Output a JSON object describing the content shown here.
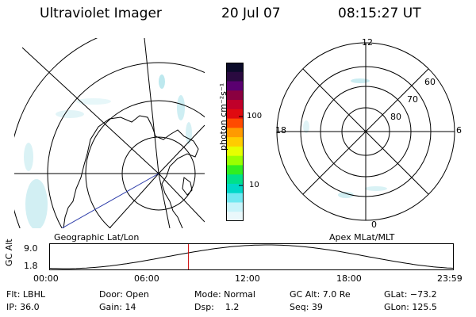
{
  "header": {
    "instrument": "Ultraviolet Imager",
    "date": "20 Jul 07",
    "time": "08:15:27 UT"
  },
  "left_panel": {
    "label": "Geographic Lat/Lon"
  },
  "right_panel": {
    "label": "Apex MLat/MLT",
    "mlt_labels": {
      "top": "12",
      "right": "6",
      "bottom": "0",
      "left": "18"
    },
    "lat_labels": [
      "60",
      "70",
      "80"
    ]
  },
  "colorbar": {
    "unit_label": "photon cm⁻²s⁻¹",
    "ticks": [
      "100",
      "10"
    ],
    "colors": [
      "#0b0b2a",
      "#2a0a40",
      "#5a0070",
      "#8a0040",
      "#c0002a",
      "#e00a10",
      "#ff4a00",
      "#ff9a00",
      "#ffcc00",
      "#e6ff00",
      "#9aff00",
      "#30ee20",
      "#00e08a",
      "#00d8c8",
      "#70e8f0",
      "#c8f4fa",
      "#eaf8fb"
    ]
  },
  "orbit": {
    "y_axis_label": "GC Alt",
    "y_ticks": [
      "9.0",
      "1.8"
    ],
    "x_ticks": [
      "00:00",
      "06:00",
      "12:00",
      "18:00",
      "23:59"
    ],
    "marker_time": "08:15:27",
    "line_color": "#000000",
    "marker_color": "#cc0000"
  },
  "footer": {
    "filter": "Flt: LBHL",
    "ip": "IP: 36.0",
    "door": "Door: Open",
    "gain": "Gain: 14",
    "mode": "Mode: Normal",
    "dsp": "Dsp:    1.2",
    "gc_alt": "GC Alt: 7.0 Re",
    "seq": "Seq: 39",
    "glat": "GLat: −73.2",
    "glon": "GLon: 125.5"
  }
}
